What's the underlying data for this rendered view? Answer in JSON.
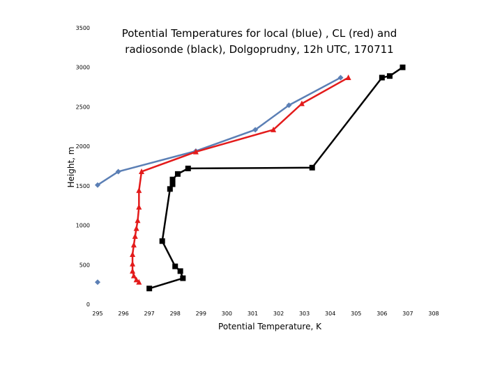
{
  "chart_data": {
    "type": "line",
    "title_lines": [
      "Potential Temperatures for local (blue) , CL (red) and",
      "radiosonde (black), Dolgoprudny, 12h UTC, 170711"
    ],
    "xlabel": "Potential Temperature, K",
    "ylabel": "Height, m",
    "xlim": [
      295,
      308
    ],
    "ylim": [
      0,
      3500
    ],
    "xticks": [
      "295",
      "296",
      "297",
      "298",
      "299",
      "300",
      "301",
      "302",
      "303",
      "304",
      "305",
      "306",
      "307",
      "308"
    ],
    "yticks": [
      "0",
      "500",
      "1000",
      "1500",
      "2000",
      "2500",
      "3000",
      "3500"
    ],
    "grid": false,
    "legend": "none",
    "series": [
      {
        "color": "#5b7fb5",
        "marker": "diamond",
        "segments": [
          [
            [
              295.0,
              280
            ]
          ],
          [
            [
              295.0,
              1510
            ],
            [
              295.8,
              1680
            ],
            [
              298.8,
              1940
            ],
            [
              301.1,
              2210
            ],
            [
              302.4,
              2520
            ],
            [
              304.4,
              2870
            ]
          ]
        ]
      },
      {
        "color": "#e31b1b",
        "marker": "triangle",
        "segments": [
          [
            [
              296.6,
              280
            ],
            [
              296.5,
              310
            ],
            [
              296.4,
              360
            ],
            [
              296.35,
              420
            ],
            [
              296.35,
              510
            ],
            [
              296.35,
              630
            ],
            [
              296.4,
              750
            ],
            [
              296.45,
              860
            ],
            [
              296.5,
              960
            ],
            [
              296.55,
              1060
            ],
            [
              296.6,
              1230
            ],
            [
              296.6,
              1440
            ],
            [
              296.7,
              1680
            ],
            [
              298.8,
              1930
            ],
            [
              301.8,
              2210
            ],
            [
              302.9,
              2540
            ],
            [
              304.7,
              2870
            ]
          ]
        ]
      },
      {
        "color": "#000000",
        "marker": "square",
        "segments": [
          [
            [
              297.0,
              200
            ],
            [
              298.3,
              330
            ],
            [
              298.2,
              420
            ],
            [
              298.0,
              480
            ],
            [
              297.5,
              800
            ],
            [
              297.8,
              1460
            ],
            [
              297.9,
              1520
            ],
            [
              297.9,
              1580
            ],
            [
              298.1,
              1650
            ],
            [
              298.5,
              1720
            ],
            [
              303.3,
              1730
            ],
            [
              306.0,
              2870
            ],
            [
              306.3,
              2890
            ],
            [
              306.8,
              3000
            ]
          ]
        ]
      }
    ]
  }
}
